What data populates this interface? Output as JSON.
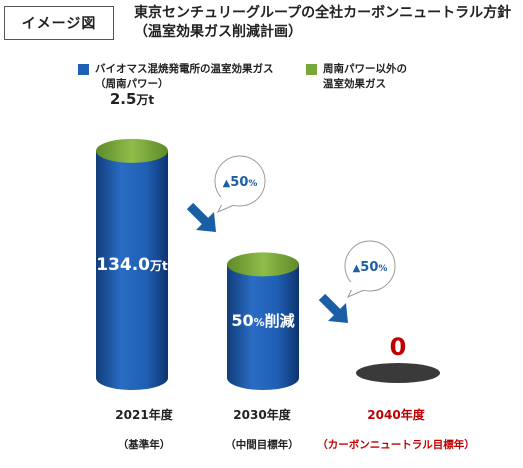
{
  "tag_label": "イメージ図",
  "title": "東京センチュリーグループの全社カーボンニュートラル方針\n（温室効果ガス削減計画）",
  "colors": {
    "biomass": "#1f5fb4",
    "other": "#78a83a",
    "arrow": "#1a5fa6",
    "target_red": "#c00000",
    "ellipse_dark": "#3a3a3a"
  },
  "chart_data": {
    "type": "bar",
    "title": "東京センチュリーグループの全社カーボンニュートラル方針（温室効果ガス削減計画）",
    "legend_placement": "top",
    "categories": [
      "2021年度（基準年）",
      "2030年度（中間目標年）",
      "2040年度（カーボンニュートラル目標年）"
    ],
    "series": [
      {
        "name": "バイオマス混焼発電所の温室効果ガス（周南パワー）",
        "color": "#1f5fb4",
        "values": [
          134.0,
          67.0,
          0
        ]
      },
      {
        "name": "周南パワー以外の温室効果ガス",
        "color": "#78a83a",
        "values": [
          2.5,
          1.25,
          0
        ]
      }
    ],
    "unit": "万t",
    "labels": {
      "bar1_value": "134.0",
      "bar1_unit": "万t",
      "top1_value": "2.5",
      "top1_unit": "万t",
      "bar2_value": "50",
      "bar2_pct": "%",
      "bar2_text": "削減",
      "bar3_value": "0"
    },
    "bubbles": [
      {
        "arrow": "▲",
        "value": "50",
        "unit": "%"
      },
      {
        "arrow": "▲",
        "value": "50",
        "unit": "%"
      }
    ],
    "grid": false
  },
  "legend": [
    {
      "label": "バイオマス混焼発電所の温室効果ガス\n（周南パワー）"
    },
    {
      "label": "周南パワー以外の\n温室効果ガス"
    }
  ],
  "xlabels": [
    {
      "year": "2021年度",
      "sub": "（基準年）"
    },
    {
      "year": "2030年度",
      "sub": "（中間目標年）"
    },
    {
      "year": "2040年度",
      "sub": "（カーボンニュートラル目標年）"
    }
  ]
}
